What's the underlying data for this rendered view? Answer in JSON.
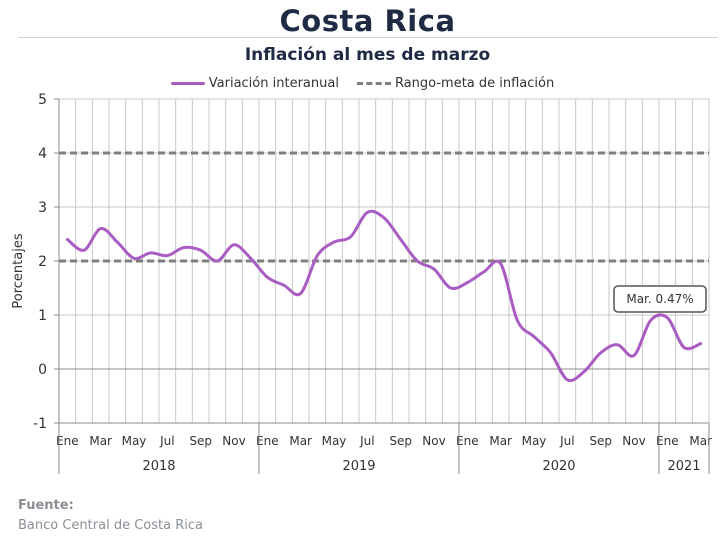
{
  "chart_data": {
    "type": "line",
    "title": "Costa Rica",
    "subtitle": "Inflación al mes de marzo",
    "ylabel": "Porcentajes",
    "ylim": [
      -1,
      5
    ],
    "yticks": [
      "-1",
      "0",
      "1",
      "2",
      "3",
      "4",
      "5"
    ],
    "month_labels": [
      "Ene",
      "Mar",
      "May",
      "Jul",
      "Sep",
      "Nov",
      "Ene",
      "Mar",
      "May",
      "Jul",
      "Sep",
      "Nov",
      "Ene",
      "Mar",
      "May",
      "Jul",
      "Sep",
      "Nov",
      "Ene",
      "Mar"
    ],
    "years": [
      {
        "label": "2018",
        "months": 12
      },
      {
        "label": "2019",
        "months": 12
      },
      {
        "label": "2020",
        "months": 12
      },
      {
        "label": "2021",
        "months": 3
      }
    ],
    "series": [
      {
        "name": "Variación interanual",
        "color": "#a95dc3",
        "style": "solid",
        "x": [
          "2018-01",
          "2018-02",
          "2018-03",
          "2018-04",
          "2018-05",
          "2018-06",
          "2018-07",
          "2018-08",
          "2018-09",
          "2018-10",
          "2018-11",
          "2018-12",
          "2019-01",
          "2019-02",
          "2019-03",
          "2019-04",
          "2019-05",
          "2019-06",
          "2019-07",
          "2019-08",
          "2019-09",
          "2019-10",
          "2019-11",
          "2019-12",
          "2020-01",
          "2020-02",
          "2020-03",
          "2020-04",
          "2020-05",
          "2020-06",
          "2020-07",
          "2020-08",
          "2020-09",
          "2020-10",
          "2020-11",
          "2020-12",
          "2021-01",
          "2021-02",
          "2021-03"
        ],
        "values": [
          2.4,
          2.2,
          2.6,
          2.35,
          2.05,
          2.15,
          2.1,
          2.25,
          2.2,
          2.0,
          2.3,
          2.05,
          1.7,
          1.55,
          1.4,
          2.1,
          2.35,
          2.45,
          2.9,
          2.8,
          2.4,
          2.0,
          1.85,
          1.5,
          1.6,
          1.8,
          1.95,
          0.9,
          0.6,
          0.3,
          -0.2,
          -0.05,
          0.3,
          0.45,
          0.25,
          0.9,
          0.95,
          0.4,
          0.47
        ]
      },
      {
        "name": "Rango-meta de inflación",
        "color": "#7f7f7f",
        "style": "dashed",
        "bands": [
          2,
          4
        ]
      }
    ],
    "annotation": {
      "text": "Mar. 0.47%"
    },
    "grid": true,
    "legend_position": "top"
  },
  "source": {
    "label": "Fuente:",
    "text": "Banco Central de Costa Rica"
  }
}
